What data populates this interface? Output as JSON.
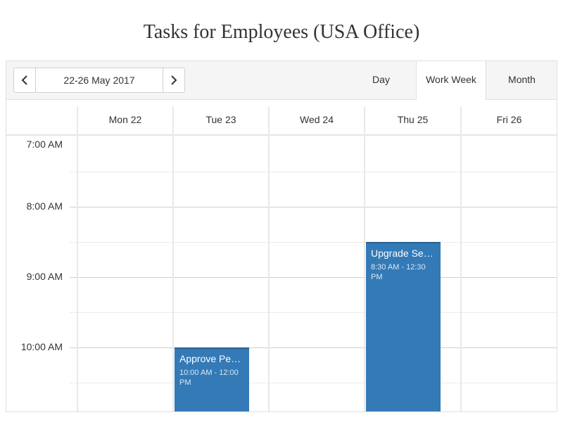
{
  "page": {
    "title": "Tasks for Employees (USA Office)"
  },
  "toolbar": {
    "date_range": "22-26 May 2017",
    "prev_icon": "chevron-left-icon",
    "next_icon": "chevron-right-icon",
    "views": [
      {
        "label": "Day",
        "active": false
      },
      {
        "label": "Work Week",
        "active": true
      },
      {
        "label": "Month",
        "active": false
      }
    ]
  },
  "days": [
    "Mon 22",
    "Tue 23",
    "Wed 24",
    "Thu 25",
    "Fri 26"
  ],
  "times": [
    "7:00 AM",
    "8:00 AM",
    "9:00 AM",
    "10:00 AM"
  ],
  "events": [
    {
      "title": "Approve Pe…",
      "time": "10:00 AM - 12:00 PM",
      "day": "Tue 23"
    },
    {
      "title": "Upgrade Se…",
      "time": "8:30 AM - 12:30 PM",
      "day": "Thu 25"
    }
  ],
  "colors": {
    "event": "#337ab7",
    "toolbar_bg": "#f5f5f5"
  }
}
